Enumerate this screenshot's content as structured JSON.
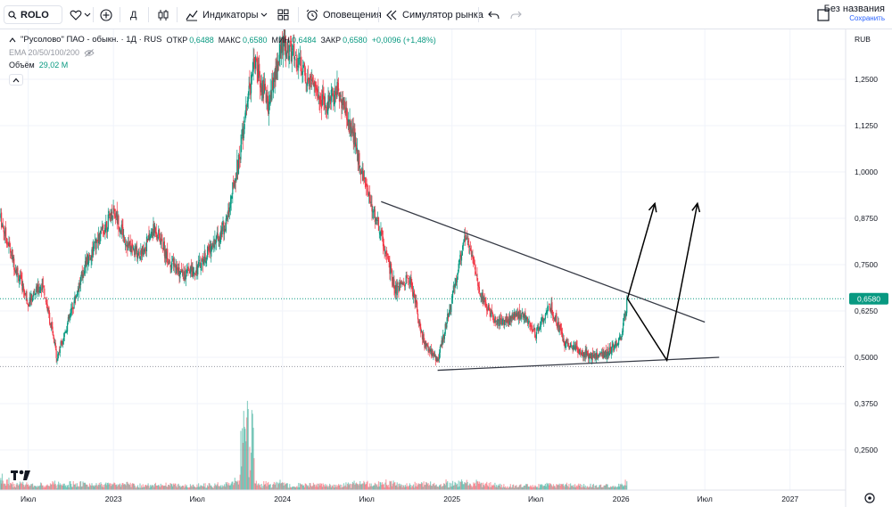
{
  "toolbar": {
    "symbol": "ROLO",
    "interval": "Д",
    "indicators": "Индикаторы",
    "alerts": "Оповещения",
    "replay": "Симулятор рынка",
    "layout_name": "Без названия",
    "layout_status": "Сохранить"
  },
  "legend": {
    "title": "\"Русолово\" ПАО - обыкн. · 1Д · RUS",
    "open_label": "ОТКР",
    "open": "0,6488",
    "high_label": "МАКС",
    "high": "0,6580",
    "low_label": "МИН",
    "low": "0,6484",
    "close_label": "ЗАКР",
    "close": "0,6580",
    "change": "+0,0096 (+1,48%)",
    "ema": "EMA 20/50/100/200",
    "volume_label": "Объём",
    "volume": "29,02 M"
  },
  "colors": {
    "up": "#089981",
    "down": "#f23645",
    "current_price": "#089981",
    "trendline": "#363a45",
    "projection": "#000000"
  },
  "chart_data": {
    "type": "candlestick",
    "currency": "RUB",
    "last_price": 0.658,
    "last_price_label": "0,6580",
    "y_ticks": [
      0.25,
      0.375,
      0.5,
      0.625,
      0.75,
      0.875,
      1.0,
      1.125,
      1.25
    ],
    "y_tick_labels": [
      "0,2500",
      "0,3750",
      "0,5000",
      "0,6250",
      "0,7500",
      "0,8750",
      "1,0000",
      "1,1250",
      "1,2500"
    ],
    "x_ticks": [
      {
        "label": "Июл",
        "date": "2022-07-01"
      },
      {
        "label": "2023",
        "date": "2023-01-01"
      },
      {
        "label": "Июл",
        "date": "2023-07-01"
      },
      {
        "label": "2024",
        "date": "2024-01-01"
      },
      {
        "label": "Июл",
        "date": "2024-07-01"
      },
      {
        "label": "2025",
        "date": "2025-01-01"
      },
      {
        "label": "Июл",
        "date": "2025-07-01"
      },
      {
        "label": "2026",
        "date": "2026-01-01"
      },
      {
        "label": "Июл",
        "date": "2026-07-01"
      },
      {
        "label": "2027",
        "date": "2027-01-01"
      }
    ],
    "x_range": [
      "2022-05-01",
      "2027-05-01"
    ],
    "price_path": [
      [
        "2022-05-01",
        0.88
      ],
      [
        "2022-06-01",
        0.75
      ],
      [
        "2022-07-01",
        0.65
      ],
      [
        "2022-08-01",
        0.7
      ],
      [
        "2022-09-01",
        0.5
      ],
      [
        "2022-10-01",
        0.62
      ],
      [
        "2022-11-01",
        0.75
      ],
      [
        "2022-12-01",
        0.82
      ],
      [
        "2023-01-01",
        0.9
      ],
      [
        "2023-02-01",
        0.8
      ],
      [
        "2023-03-01",
        0.78
      ],
      [
        "2023-04-01",
        0.85
      ],
      [
        "2023-05-01",
        0.76
      ],
      [
        "2023-06-01",
        0.72
      ],
      [
        "2023-07-01",
        0.74
      ],
      [
        "2023-08-01",
        0.8
      ],
      [
        "2023-09-01",
        0.86
      ],
      [
        "2023-10-01",
        1.05
      ],
      [
        "2023-11-01",
        1.3
      ],
      [
        "2023-12-01",
        1.18
      ],
      [
        "2024-01-01",
        1.35
      ],
      [
        "2024-02-01",
        1.3
      ],
      [
        "2024-03-01",
        1.25
      ],
      [
        "2024-04-01",
        1.18
      ],
      [
        "2024-05-01",
        1.22
      ],
      [
        "2024-06-01",
        1.1
      ],
      [
        "2024-07-01",
        0.95
      ],
      [
        "2024-08-01",
        0.83
      ],
      [
        "2024-09-01",
        0.68
      ],
      [
        "2024-10-01",
        0.72
      ],
      [
        "2024-11-01",
        0.54
      ],
      [
        "2024-12-01",
        0.49
      ],
      [
        "2025-01-01",
        0.66
      ],
      [
        "2025-02-01",
        0.84
      ],
      [
        "2025-03-01",
        0.68
      ],
      [
        "2025-04-01",
        0.6
      ],
      [
        "2025-05-01",
        0.6
      ],
      [
        "2025-06-01",
        0.62
      ],
      [
        "2025-07-01",
        0.56
      ],
      [
        "2025-08-01",
        0.64
      ],
      [
        "2025-09-01",
        0.54
      ],
      [
        "2025-10-01",
        0.52
      ],
      [
        "2025-11-01",
        0.5
      ],
      [
        "2025-12-01",
        0.51
      ],
      [
        "2026-01-01",
        0.55
      ],
      [
        "2026-01-15",
        0.658
      ]
    ],
    "trendlines": [
      {
        "name": "upper",
        "from": [
          "2024-08-01",
          0.92
        ],
        "to": [
          "2026-07-01",
          0.595
        ]
      },
      {
        "name": "lower",
        "from": [
          "2024-12-01",
          0.465
        ],
        "to": [
          "2026-08-01",
          0.5
        ]
      }
    ],
    "projections": [
      {
        "points": [
          [
            "2026-01-15",
            0.658
          ],
          [
            "2026-03-15",
            0.915
          ]
        ]
      },
      {
        "points": [
          [
            "2026-01-15",
            0.658
          ],
          [
            "2026-04-10",
            0.492
          ],
          [
            "2026-06-15",
            0.915
          ]
        ]
      }
    ]
  }
}
